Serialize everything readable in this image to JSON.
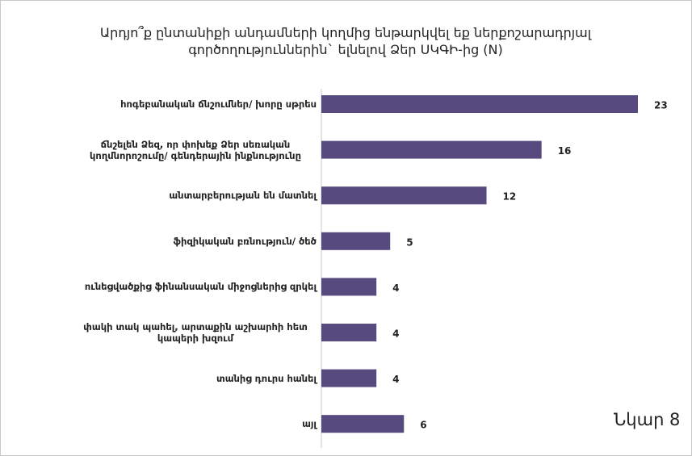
{
  "chart_data": {
    "type": "bar",
    "orientation": "horizontal",
    "title": "Արդյո՞ք ընտանիքի անդամների կողմից ենթարկվել եք ներքոշարադրյալ գործողություններին` ելնելով Ձեր ՍԿԳԻ-ից (N)",
    "categories": [
      "հոգեբանական ճնշումներ/ խորը սթրես",
      "ճնշելեն Ձեզ, որ փոխեք Ձեր սեռական կողմնորոշումը/ գենդերային ինքնությունը",
      "անտարբերության են մատնել",
      "ֆիզիկական բռնություն/ ծեծ",
      "ունեցվածքից ֆինանսական միջոցներից զրկել",
      "փակի տակ պահել, արտաքին աշխարհի հետ կապերի խզում",
      "տանից դուրս հանել",
      "այլ"
    ],
    "values": [
      23,
      16,
      12,
      5,
      4,
      4,
      4,
      6
    ],
    "color": "#574a7e",
    "annotation": "Նկար 8"
  }
}
